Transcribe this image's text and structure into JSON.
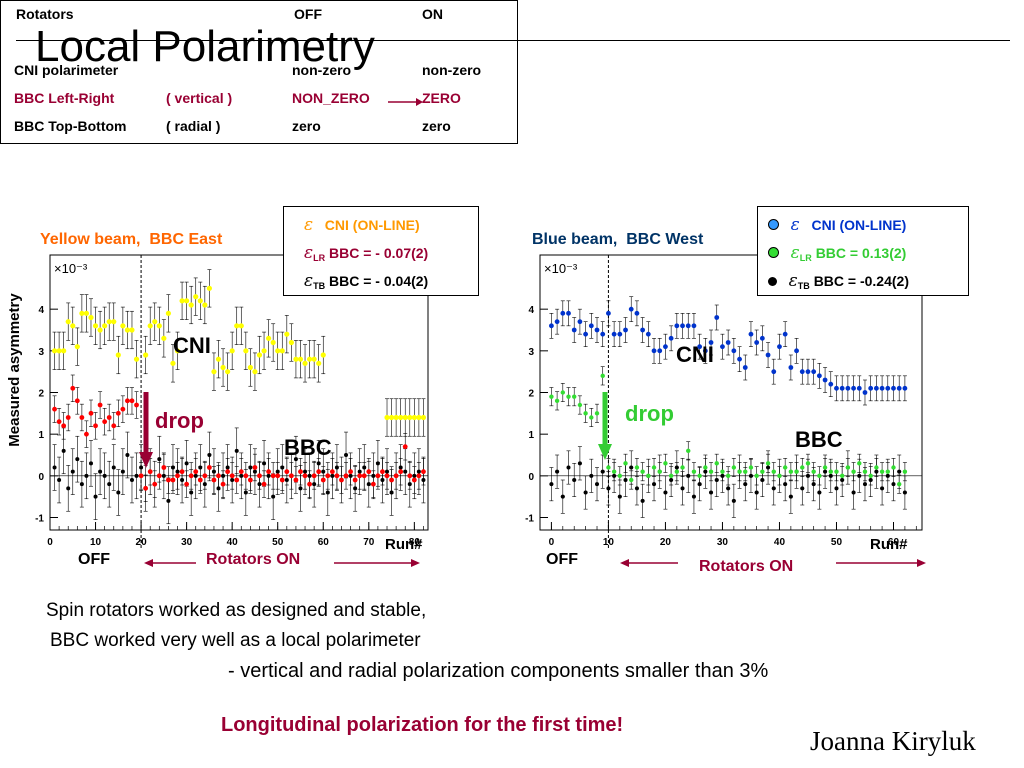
{
  "slide": {
    "title": "Local Polarimetry",
    "author": "Joanna Kiryluk"
  },
  "table": {
    "header": {
      "col1": "Rotators",
      "col2": "OFF",
      "col3": "ON"
    },
    "rows": [
      {
        "label": "CNI polarimeter",
        "detail": "",
        "off": "non-zero",
        "on": "non-zero",
        "color": "#000000"
      },
      {
        "label": "BBC Left-Right",
        "detail": "( vertical )",
        "off": "NON_ZERO",
        "on": "ZERO",
        "color": "#990033"
      },
      {
        "label": "BBC Top-Bottom",
        "detail": "( radial    )",
        "off": "zero",
        "on": "zero",
        "color": "#000000"
      }
    ]
  },
  "y_axis_label": "Measured asymmetry",
  "panels": {
    "yellow": {
      "heading_beam": "Yellow beam,",
      "heading_bbc": "BBC East",
      "heading_color": "#ff6600",
      "legend": {
        "eps_symbol": "ε",
        "cni": "CNI (ON-LINE)",
        "lr_sub": "LR",
        "lr": "BBC = - 0.07(2)",
        "tb_sub": "TB",
        "tb": "BBC = - 0.04(2)"
      },
      "label_cni": "CNI",
      "label_drop": "drop",
      "label_bbc": "BBC",
      "label_off": "OFF",
      "label_on": "Rotators ON",
      "label_run": "Run#"
    },
    "blue": {
      "heading_beam": "Blue beam,",
      "heading_bbc": "BBC West",
      "heading_color": "#003366",
      "legend": {
        "eps_symbol": "ε",
        "cni": "CNI (ON-LINE)",
        "lr_sub": "LR",
        "lr": "BBC  =   0.13(2)",
        "tb_sub": "TB",
        "tb": "BBC  = -0.24(2)"
      },
      "label_cni": "CNI",
      "label_drop": "drop",
      "label_bbc": "BBC",
      "label_off": "OFF",
      "label_on": "Rotators ON",
      "label_run": "Run#"
    }
  },
  "notes": {
    "line1": "Spin rotators worked as designed and stable,",
    "line2": "BBC worked very well as a local polarimeter",
    "line3": "- vertical and radial polarization components  smaller than 3%",
    "highlight": "Longitudinal polarization for the first time!"
  },
  "colors": {
    "dark_red": "#990033",
    "drop_red": "#990033",
    "drop_green": "#33cc33",
    "yellow_cni": "#ffff00",
    "yellow_lr": "#ff0000",
    "blue_cni": "#0033cc",
    "blue_lr": "#33dd33",
    "tb": "#000000"
  },
  "chart_data": [
    {
      "type": "scatter",
      "name": "yellow-beam-bbc-east",
      "title": "",
      "xlabel": "Run#",
      "ylabel": "Measured asymmetry",
      "scale_label": "×10⁻³",
      "xlim": [
        0,
        83
      ],
      "ylim": [
        -1.3,
        5.3
      ],
      "x_ticks": [
        "0",
        "10",
        "20",
        "30",
        "40",
        "50",
        "60",
        "70",
        "80"
      ],
      "y_ticks": [
        "-1",
        "0",
        "1",
        "2",
        "3",
        "4"
      ],
      "rotators_on_from_run": 20,
      "series": [
        {
          "name": "ε CNI (ON-LINE)",
          "color": "#ffff00",
          "mark_size": 2.6,
          "err": 0.45,
          "step": 0.42,
          "segments": [
            {
              "x0": 1,
              "x1": 19,
              "y": [
                3.0,
                3.0,
                3.0,
                3.7,
                3.6,
                3.1,
                3.9,
                3.9,
                3.8,
                3.6,
                3.5,
                3.6,
                3.7,
                3.7,
                2.9,
                3.6,
                3.5,
                3.5,
                2.8
              ]
            },
            {
              "x0": 21,
              "x1": 36,
              "y": [
                2.9,
                3.6,
                3.7,
                3.6,
                3.3,
                3.9,
                2.7,
                3.0,
                4.2,
                4.2,
                4.1,
                4.3,
                4.2,
                4.1,
                4.5,
                2.5
              ]
            },
            {
              "x0": 37,
              "x1": 60,
              "y": [
                2.8,
                2.6,
                2.5,
                3.0,
                3.6,
                3.6,
                3.0,
                2.6,
                2.5,
                2.9,
                3.0,
                3.3,
                3.2,
                3.0,
                3.0,
                3.4,
                3.2,
                2.8,
                2.8,
                2.7,
                2.8,
                2.8,
                2.7,
                2.9
              ]
            },
            {
              "x0": 74,
              "x1": 82,
              "y": [
                1.4,
                1.4,
                1.4,
                1.4,
                1.4,
                1.4,
                1.4,
                1.4,
                1.4
              ]
            }
          ]
        },
        {
          "name": "ε_LR BBC = - 0.07(2)",
          "color": "#ff0000",
          "mark_size": 2.4,
          "err": 0.32,
          "step": 0.2,
          "segments": [
            {
              "x0": 1,
              "x1": 19,
              "y": [
                1.6,
                1.3,
                1.2,
                1.4,
                2.1,
                1.8,
                1.4,
                1.0,
                1.5,
                1.2,
                1.7,
                1.3,
                1.4,
                1.2,
                1.5,
                1.6,
                1.8,
                1.8,
                1.7
              ]
            },
            {
              "x0": 20,
              "x1": 82,
              "y": [
                0.0,
                -0.3,
                0.1,
                -0.2,
                0.0,
                0.2,
                -0.1,
                -0.1,
                0.0,
                0.1,
                -0.2,
                0.0,
                0.1,
                -0.1,
                0.0,
                0.2,
                -0.1,
                0.0,
                -0.2,
                0.1,
                0.0,
                -0.1,
                0.1,
                0.0,
                -0.1,
                0.2,
                0.0,
                -0.2,
                0.1,
                0.0,
                0.0,
                -0.1,
                0.1,
                0.0,
                -0.1,
                0.1,
                0.0,
                -0.2,
                0.0,
                0.1,
                -0.1,
                0.0,
                0.1,
                0.0,
                -0.1,
                0.0,
                0.1,
                -0.1,
                0.0,
                0.0,
                0.1,
                -0.2,
                0.0,
                0.1,
                0.0,
                -0.1,
                0.0,
                0.1,
                0.7,
                0.0,
                -0.1,
                0.0,
                0.1
              ]
            }
          ]
        },
        {
          "name": "ε_TB BBC = - 0.04(2)",
          "color": "#000000",
          "mark_size": 2.0,
          "err": 0.55,
          "step": 0.3,
          "segments": [
            {
              "x0": 1,
              "x1": 82,
              "y": [
                0.2,
                -0.1,
                0.6,
                -0.3,
                0.1,
                0.4,
                -0.2,
                0.0,
                0.3,
                -0.5,
                0.1,
                0.0,
                -0.2,
                0.2,
                -0.4,
                0.1,
                0.5,
                -0.1,
                0.0,
                0.2,
                -0.3,
                0.1,
                -0.2,
                0.4,
                0.0,
                -0.6,
                0.2,
                0.1,
                -0.1,
                0.3,
                -0.4,
                0.0,
                0.2,
                -0.2,
                0.5,
                0.1,
                -0.3,
                0.0,
                0.2,
                -0.1,
                0.6,
                0.0,
                -0.4,
                0.2,
                0.1,
                -0.2,
                0.3,
                0.0,
                -0.5,
                0.1,
                0.2,
                -0.1,
                0.0,
                0.4,
                -0.3,
                0.1,
                0.0,
                -0.2,
                0.3,
                0.1,
                -0.4,
                0.0,
                0.2,
                -0.1,
                0.5,
                0.0,
                -0.3,
                0.1,
                0.2,
                -0.2,
                0.0,
                0.3,
                -0.1,
                0.1,
                -0.4,
                0.0,
                0.2,
                0.1,
                -0.2,
                0.0,
                0.1,
                -0.1
              ]
            }
          ]
        }
      ]
    },
    {
      "type": "scatter",
      "name": "blue-beam-bbc-west",
      "title": "",
      "xlabel": "Run#",
      "ylabel": "Measured asymmetry",
      "scale_label": "×10⁻³",
      "xlim": [
        -2,
        65
      ],
      "ylim": [
        -1.3,
        5.3
      ],
      "x_ticks": [
        "0",
        "10",
        "20",
        "30",
        "40",
        "50",
        "60"
      ],
      "y_ticks": [
        "-1",
        "0",
        "1",
        "2",
        "3",
        "4"
      ],
      "rotators_on_from_run": 10,
      "series": [
        {
          "name": "ε CNI (ON-LINE)",
          "color": "#0033cc",
          "mark_size": 2.4,
          "err": 0.3,
          "step": 0.3,
          "segments": [
            {
              "x0": 0,
              "x1": 10,
              "y": [
                3.6,
                3.7,
                3.9,
                3.9,
                3.5,
                3.7,
                3.4,
                3.6,
                3.5,
                3.4,
                3.9
              ]
            },
            {
              "x0": 11,
              "x1": 62,
              "y": [
                3.4,
                3.4,
                3.5,
                4.0,
                3.9,
                3.5,
                3.4,
                3.0,
                3.0,
                3.1,
                3.3,
                3.6,
                3.6,
                3.6,
                3.6,
                3.1,
                3.0,
                3.2,
                3.8,
                3.1,
                3.2,
                3.0,
                2.8,
                2.6,
                3.4,
                3.2,
                3.3,
                2.9,
                2.5,
                3.1,
                3.4,
                2.6,
                3.0,
                2.5,
                2.5,
                2.5,
                2.4,
                2.3,
                2.2,
                2.1,
                2.1,
                2.1,
                2.1,
                2.1,
                2.0,
                2.1,
                2.1,
                2.1,
                2.1,
                2.1,
                2.1,
                2.1
              ]
            }
          ]
        },
        {
          "name": "ε_LR BBC  =   0.13(2)",
          "color": "#33dd33",
          "mark_size": 2.2,
          "err": 0.22,
          "step": 0.2,
          "segments": [
            {
              "x0": 0,
              "x1": 9,
              "y": [
                1.9,
                1.8,
                2.0,
                1.9,
                1.9,
                1.7,
                1.5,
                1.4,
                1.5,
                2.4
              ]
            },
            {
              "x0": 10,
              "x1": 62,
              "y": [
                0.2,
                0.1,
                0.0,
                0.3,
                -0.1,
                0.2,
                0.1,
                0.0,
                0.2,
                0.1,
                0.3,
                0.0,
                0.1,
                0.2,
                0.6,
                0.1,
                0.0,
                0.2,
                0.1,
                0.3,
                0.1,
                0.0,
                0.2,
                0.1,
                0.1,
                0.2,
                0.0,
                0.1,
                0.3,
                0.1,
                0.0,
                0.2,
                0.1,
                0.1,
                0.2,
                0.3,
                0.1,
                0.0,
                0.2,
                0.1,
                0.1,
                0.0,
                0.2,
                0.1,
                0.3,
                0.1,
                0.0,
                0.2,
                0.1,
                0.1,
                0.2,
                -0.2,
                0.1
              ]
            }
          ]
        },
        {
          "name": "ε_TB BBC  = -0.24(2)",
          "color": "#000000",
          "mark_size": 2.0,
          "err": 0.4,
          "step": 0.35,
          "segments": [
            {
              "x0": 0,
              "x1": 62,
              "y": [
                -0.2,
                0.1,
                -0.5,
                0.2,
                -0.1,
                0.3,
                -0.4,
                0.0,
                -0.2,
                0.1,
                -0.3,
                0.0,
                -0.5,
                -0.1,
                0.2,
                -0.3,
                -0.6,
                0.0,
                -0.2,
                0.1,
                -0.4,
                -0.1,
                0.2,
                -0.3,
                0.0,
                -0.5,
                -0.2,
                0.1,
                -0.4,
                -0.1,
                0.0,
                -0.3,
                -0.6,
                0.1,
                -0.2,
                0.0,
                -0.4,
                -0.1,
                0.2,
                -0.3,
                0.0,
                -0.2,
                -0.5,
                0.1,
                -0.3,
                0.0,
                -0.2,
                -0.4,
                0.1,
                0.0,
                -0.3,
                -0.1,
                0.2,
                -0.4,
                0.0,
                -0.2,
                -0.1,
                0.1,
                -0.3,
                0.0,
                -0.2,
                0.1,
                -0.4
              ]
            }
          ]
        }
      ]
    }
  ]
}
